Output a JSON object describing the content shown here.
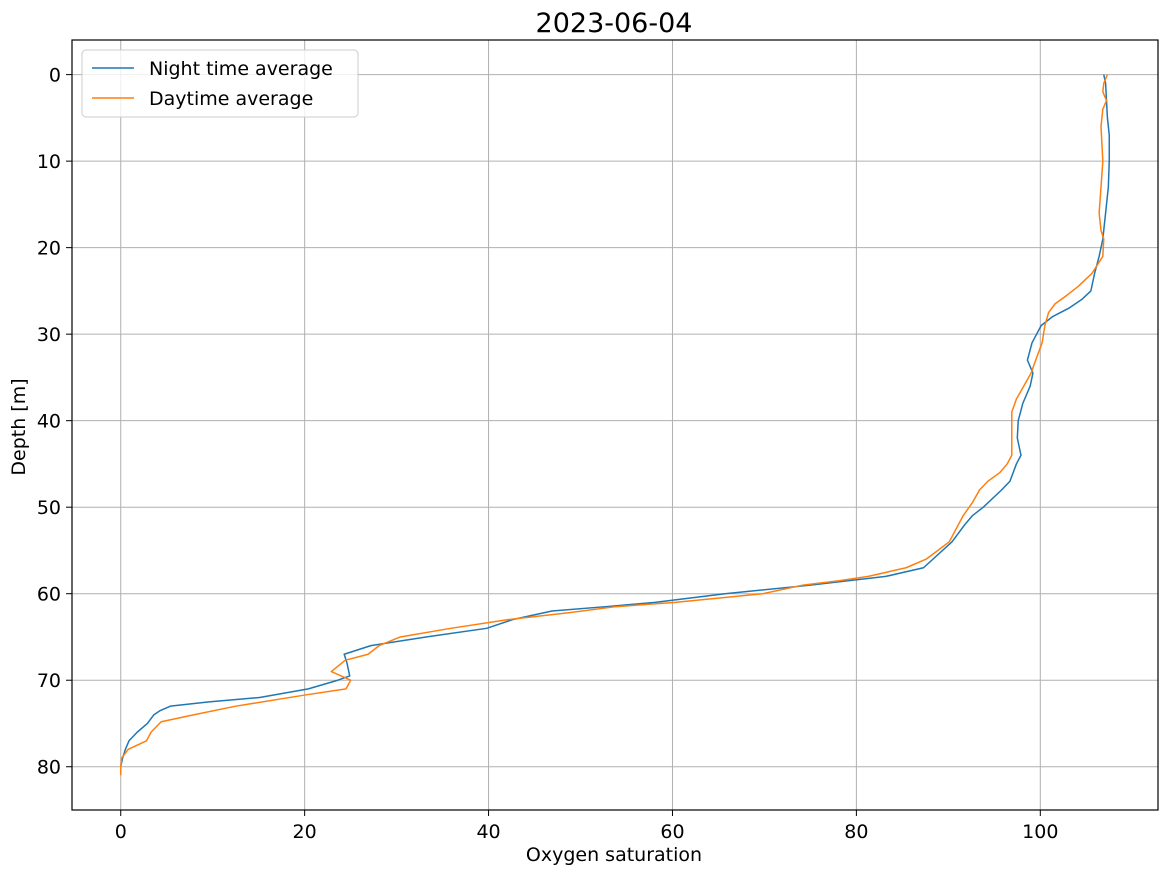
{
  "chart_data": {
    "type": "line",
    "title": "2023-06-04",
    "xlabel": "Oxygen saturation",
    "ylabel": "Depth [m]",
    "xlim": [
      -5.3,
      112.8
    ],
    "ylim": [
      85,
      -4
    ],
    "y_inverted": true,
    "xticks": [
      0,
      20,
      40,
      60,
      80,
      100
    ],
    "yticks": [
      0,
      10,
      20,
      30,
      40,
      50,
      60,
      70,
      80
    ],
    "grid": true,
    "legend_position": "upper-left",
    "series": [
      {
        "name": "Night time average",
        "color": "#1f77b4",
        "points": [
          [
            106.9,
            0
          ],
          [
            107.1,
            1
          ],
          [
            107.2,
            3
          ],
          [
            107.3,
            5
          ],
          [
            107.5,
            7
          ],
          [
            107.5,
            10
          ],
          [
            107.4,
            13
          ],
          [
            107.1,
            16
          ],
          [
            106.8,
            19
          ],
          [
            106.4,
            21
          ],
          [
            105.9,
            23
          ],
          [
            105.5,
            25
          ],
          [
            104.5,
            26
          ],
          [
            103.1,
            27
          ],
          [
            101.3,
            28
          ],
          [
            100.1,
            29
          ],
          [
            99.1,
            31
          ],
          [
            98.6,
            33
          ],
          [
            99.2,
            34.5
          ],
          [
            98.9,
            36
          ],
          [
            98.1,
            38
          ],
          [
            97.6,
            40
          ],
          [
            97.5,
            42
          ],
          [
            97.9,
            44
          ],
          [
            97.4,
            45
          ],
          [
            96.7,
            47
          ],
          [
            95.8,
            48
          ],
          [
            93.8,
            50
          ],
          [
            92.6,
            51
          ],
          [
            91.8,
            52
          ],
          [
            90.4,
            54
          ],
          [
            87.3,
            57
          ],
          [
            83.2,
            58
          ],
          [
            75.1,
            59
          ],
          [
            65.7,
            60
          ],
          [
            58.1,
            61
          ],
          [
            52.7,
            61.5
          ],
          [
            46.9,
            62
          ],
          [
            42.6,
            63
          ],
          [
            39.8,
            64
          ],
          [
            33.2,
            65
          ],
          [
            27.2,
            66
          ],
          [
            24.3,
            67
          ],
          [
            24.6,
            68
          ],
          [
            24.9,
            69.5
          ],
          [
            23.6,
            70
          ],
          [
            20.4,
            71
          ],
          [
            15.1,
            72
          ],
          [
            9.6,
            72.5
          ],
          [
            5.4,
            73
          ],
          [
            4.3,
            73.5
          ],
          [
            3.6,
            74
          ],
          [
            2.9,
            75
          ],
          [
            1.8,
            76
          ],
          [
            0.9,
            77
          ],
          [
            0.5,
            78
          ],
          [
            0.2,
            79
          ],
          [
            0.0,
            80
          ]
        ]
      },
      {
        "name": "Daytime average",
        "color": "#ff7f0e",
        "points": [
          [
            107.3,
            0
          ],
          [
            106.9,
            1
          ],
          [
            106.8,
            2
          ],
          [
            107.2,
            3
          ],
          [
            106.8,
            4
          ],
          [
            106.6,
            6
          ],
          [
            106.7,
            8
          ],
          [
            106.8,
            10
          ],
          [
            106.6,
            13
          ],
          [
            106.4,
            16
          ],
          [
            106.6,
            18
          ],
          [
            106.9,
            19
          ],
          [
            106.8,
            21
          ],
          [
            105.6,
            23
          ],
          [
            104.1,
            24.5
          ],
          [
            102.9,
            25.5
          ],
          [
            101.6,
            26.5
          ],
          [
            100.9,
            27.5
          ],
          [
            100.5,
            29
          ],
          [
            100.2,
            31
          ],
          [
            99.5,
            33
          ],
          [
            99.0,
            34.5
          ],
          [
            98.2,
            36
          ],
          [
            97.4,
            37.5
          ],
          [
            96.9,
            39
          ],
          [
            96.9,
            42
          ],
          [
            96.9,
            44
          ],
          [
            96.4,
            45
          ],
          [
            95.6,
            46
          ],
          [
            94.3,
            47
          ],
          [
            93.4,
            48
          ],
          [
            92.6,
            49.5
          ],
          [
            91.6,
            51
          ],
          [
            90.1,
            54
          ],
          [
            87.6,
            56
          ],
          [
            85.4,
            57
          ],
          [
            81.3,
            58
          ],
          [
            78.1,
            58.5
          ],
          [
            74.2,
            59
          ],
          [
            69.8,
            60
          ],
          [
            60.3,
            61
          ],
          [
            53.8,
            61.5
          ],
          [
            48.7,
            62.2
          ],
          [
            42.1,
            63
          ],
          [
            35.9,
            64
          ],
          [
            30.4,
            65
          ],
          [
            28.1,
            66
          ],
          [
            26.9,
            67
          ],
          [
            24.4,
            67.7
          ],
          [
            22.9,
            69
          ],
          [
            25.0,
            70
          ],
          [
            24.5,
            71
          ],
          [
            20.1,
            71.7
          ],
          [
            12.5,
            73
          ],
          [
            7.9,
            74
          ],
          [
            4.4,
            74.8
          ],
          [
            3.3,
            76
          ],
          [
            2.8,
            77
          ],
          [
            0.8,
            78
          ],
          [
            0.1,
            79
          ],
          [
            0.0,
            80
          ],
          [
            0.0,
            81
          ]
        ]
      }
    ]
  }
}
